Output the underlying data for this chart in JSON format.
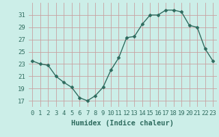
{
  "xlabel": "Humidex (Indice chaleur)",
  "x": [
    0,
    1,
    2,
    3,
    4,
    5,
    6,
    7,
    8,
    9,
    10,
    11,
    12,
    13,
    14,
    15,
    16,
    17,
    18,
    19,
    20,
    21,
    22,
    23
  ],
  "y": [
    23.5,
    23.0,
    22.8,
    21.0,
    20.0,
    19.2,
    17.5,
    17.0,
    17.8,
    19.2,
    22.0,
    24.0,
    27.3,
    27.5,
    29.5,
    31.0,
    31.0,
    31.8,
    31.8,
    31.5,
    29.3,
    29.0,
    25.5,
    23.5
  ],
  "line_color": "#2e6b5e",
  "marker": "D",
  "marker_size": 2.5,
  "background_color": "#cceee8",
  "grid_color_major": "#c8a0a0",
  "grid_color_minor": "#c8a0a0",
  "tick_color": "#2e6b5e",
  "label_color": "#2e6b5e",
  "ylim": [
    16,
    33
  ],
  "xlim": [
    -0.5,
    23.5
  ],
  "yticks": [
    17,
    19,
    21,
    23,
    25,
    27,
    29,
    31
  ],
  "xticks": [
    0,
    1,
    2,
    3,
    4,
    5,
    6,
    7,
    8,
    9,
    10,
    11,
    12,
    13,
    14,
    15,
    16,
    17,
    18,
    19,
    20,
    21,
    22,
    23
  ],
  "xlabel_fontsize": 7.5,
  "tick_fontsize": 6.5,
  "line_width": 1.0
}
